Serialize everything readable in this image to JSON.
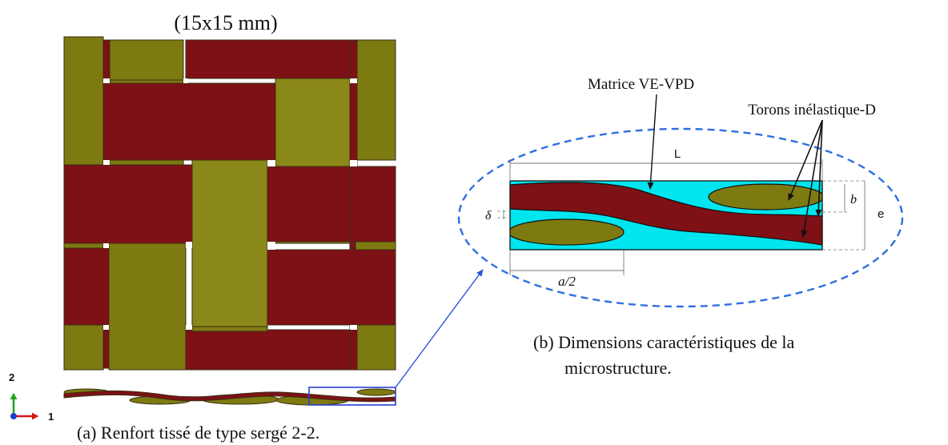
{
  "weave": {
    "size_label": "(15x15 mm)",
    "caption": "(a) Renfort tissé de type sergé 2-2.",
    "axis_2": "2",
    "axis_1": "1"
  },
  "micro": {
    "label_matrix": "Matrice VE-VPD",
    "label_tows": "Torons inélastique-D",
    "dim_L": "L",
    "dim_b": "b",
    "dim_e": "e",
    "dim_delta": "δ",
    "dim_a2": "a/2",
    "caption_line1": "(b) Dimensions caractéristiques de la",
    "caption_line2": "microstructure."
  },
  "colors": {
    "olive": "#7e7a12",
    "red": "#7d1116",
    "matrix": "#00e5ee",
    "ellipse": "#2f6fe0",
    "axis_green": "#1fa31f",
    "axis_red": "#d21414",
    "axis_blue": "#1a3fd0"
  }
}
